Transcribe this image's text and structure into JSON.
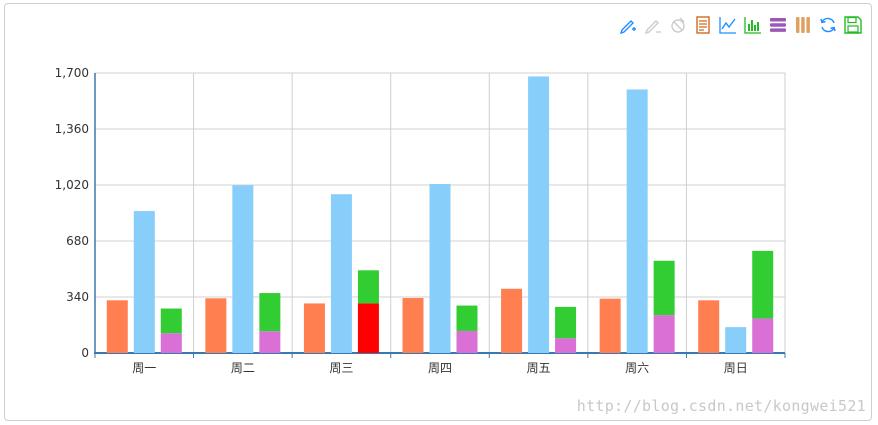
{
  "toolbox": {
    "icons": [
      "mark-icon",
      "mark-undo-icon",
      "mark-clear-icon",
      "data-view-icon",
      "line-chart-icon",
      "bar-chart-icon",
      "stack-icon",
      "tiled-icon",
      "restore-icon",
      "save-image-icon"
    ]
  },
  "chart_data": {
    "type": "bar",
    "categories": [
      "周一",
      "周二",
      "周三",
      "周四",
      "周五",
      "周六",
      "周日"
    ],
    "ylim": [
      0,
      1700
    ],
    "yticks": [
      "0",
      "340",
      "680",
      "1,020",
      "1,360",
      "1,700"
    ],
    "grid": true,
    "series": [
      {
        "color": "#ff7f50",
        "values": [
          320,
          332,
          301,
          334,
          390,
          330,
          320
        ]
      },
      {
        "color": "#87cefa",
        "values": [
          862,
          1018,
          964,
          1026,
          1679,
          1600,
          157
        ]
      },
      {
        "color": "#da70d6",
        "stack": "s",
        "values": [
          120,
          132,
          0,
          134,
          90,
          230,
          210
        ]
      },
      {
        "color": "#ff0000",
        "stack": "s",
        "values": [
          0,
          0,
          301,
          0,
          0,
          0,
          0
        ]
      },
      {
        "color": "#32cd32",
        "stack": "s",
        "values": [
          150,
          232,
          201,
          154,
          190,
          330,
          410
        ]
      }
    ]
  },
  "watermark": "http://blog.csdn.net/kongwei521"
}
